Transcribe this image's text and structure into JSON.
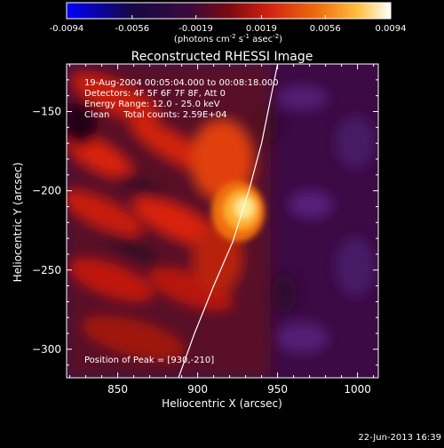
{
  "colorbar": {
    "ticks": [
      "-0.0094",
      "-0.0056",
      "-0.0019",
      "0.0019",
      "0.0056",
      "0.0094"
    ],
    "tick_values": [
      -0.0094,
      -0.0056,
      -0.0019,
      0.0019,
      0.0056,
      0.0094
    ],
    "unit_text": "(photons cm",
    "unit_sup1": "-2",
    "unit_mid": " s",
    "unit_sup2": "-1",
    "unit_end": " asec",
    "unit_sup3": "-2",
    "unit_close": ")",
    "colors": [
      "#0000ff",
      "#1a0a4a",
      "#3a0a40",
      "#8a0a10",
      "#d02010",
      "#f07010",
      "#ffc040",
      "#ffffff"
    ]
  },
  "chart_data": {
    "type": "heatmap",
    "title": "Reconstructed RHESSI Image",
    "xlabel": "Heliocentric X (arcsec)",
    "ylabel": "Heliocentric Y (arcsec)",
    "xlim": [
      818,
      1013
    ],
    "ylim": [
      -318,
      -120
    ],
    "x_ticks": [
      850,
      900,
      950,
      1000
    ],
    "y_ticks": [
      -150,
      -200,
      -250,
      -300
    ],
    "x_tick_labels": [
      "850",
      "900",
      "950",
      "1000"
    ],
    "y_tick_labels": [
      "−150",
      "−200",
      "−250",
      "−300"
    ],
    "peak": [
      930,
      -210
    ],
    "limb_points": [
      [
        888,
        -318
      ],
      [
        898,
        -290
      ],
      [
        910,
        -260
      ],
      [
        922,
        -232
      ],
      [
        932,
        -200
      ],
      [
        940,
        -170
      ],
      [
        946,
        -140
      ],
      [
        950,
        -120
      ]
    ],
    "annotations": [
      "19-Aug-2004 00:05:04.000 to 00:08:18.000",
      "Detectors: 4F 5F 6F 7F 8F, Att 0",
      "Energy Range: 12.0 - 25.0 keV",
      "Clean     Total counts: 2.59E+04"
    ],
    "peak_label": "Position of Peak = [930,-210]"
  },
  "footer": {
    "timestamp": "22-Jun-2013 16:39"
  }
}
